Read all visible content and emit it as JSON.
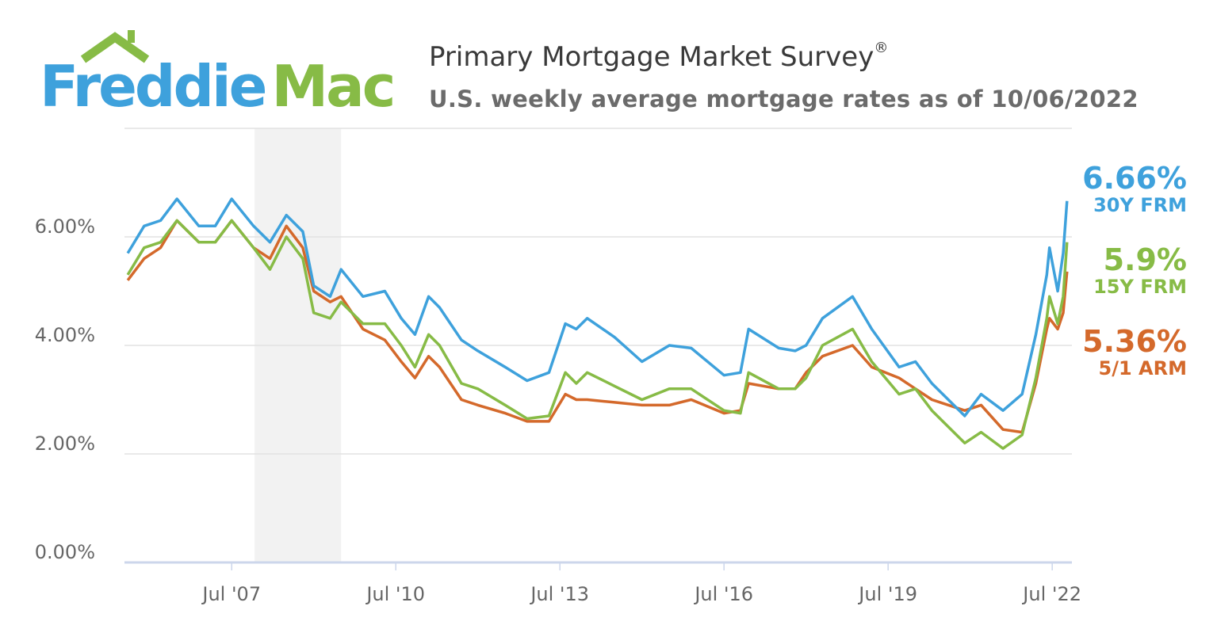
{
  "logo": {
    "text_part1": "Freddie",
    "text_part2": "Mac"
  },
  "header": {
    "title": "Primary Mortgage Market Survey",
    "title_mark": "®",
    "subtitle": "U.S. weekly average mortgage rates as of 10/06/2022"
  },
  "colors": {
    "frm30": "#3ea1dc",
    "frm15": "#87bb46",
    "arm51": "#d4692b",
    "recession": "#f2f2f2",
    "grid": "#e2e2e2",
    "axis": "#ccd6eb"
  },
  "latest": [
    {
      "value": "6.66%",
      "name": "30Y FRM"
    },
    {
      "value": "5.9%",
      "name": "15Y FRM"
    },
    {
      "value": "5.36%",
      "name": "5/1 ARM"
    }
  ],
  "chart_data": {
    "type": "line",
    "title": "Primary Mortgage Market Survey",
    "subtitle": "U.S. weekly average mortgage rates as of 10/06/2022",
    "xlabel": "",
    "ylabel": "",
    "xlim": [
      2005.54,
      2022.86
    ],
    "ylim": [
      0,
      8
    ],
    "grid": true,
    "y_ticks": [
      0,
      2,
      4,
      6,
      8
    ],
    "y_tick_labels": [
      "0.00%",
      "2.00%",
      "4.00%",
      "6.00%",
      ""
    ],
    "x_ticks": [
      2007.5,
      2010.5,
      2013.5,
      2016.5,
      2019.5,
      2022.5
    ],
    "x_tick_labels": [
      "Jul '07",
      "Jul '10",
      "Jul '13",
      "Jul '16",
      "Jul '19",
      "Jul '22"
    ],
    "recession_band": [
      2007.92,
      2009.5
    ],
    "legend": "right",
    "x": [
      2005.6,
      2005.9,
      2006.2,
      2006.5,
      2006.9,
      2007.2,
      2007.5,
      2007.9,
      2008.2,
      2008.5,
      2008.8,
      2009.0,
      2009.3,
      2009.5,
      2009.9,
      2010.3,
      2010.6,
      2010.85,
      2011.1,
      2011.3,
      2011.7,
      2012.0,
      2012.5,
      2012.9,
      2013.3,
      2013.6,
      2013.8,
      2014.0,
      2014.5,
      2015.0,
      2015.5,
      2015.9,
      2016.5,
      2016.8,
      2016.95,
      2017.5,
      2017.8,
      2018.0,
      2018.3,
      2018.85,
      2019.2,
      2019.7,
      2020.0,
      2020.3,
      2020.9,
      2021.2,
      2021.6,
      2021.95,
      2022.2,
      2022.4,
      2022.45,
      2022.6,
      2022.7,
      2022.77
    ],
    "series": [
      {
        "name": "30Y FRM",
        "values": [
          5.7,
          6.2,
          6.3,
          6.7,
          6.2,
          6.2,
          6.7,
          6.2,
          5.9,
          6.4,
          6.1,
          5.1,
          4.9,
          5.4,
          4.9,
          5.0,
          4.5,
          4.2,
          4.9,
          4.7,
          4.1,
          3.9,
          3.6,
          3.35,
          3.5,
          4.4,
          4.3,
          4.5,
          4.15,
          3.7,
          4.0,
          3.95,
          3.45,
          3.5,
          4.3,
          3.95,
          3.9,
          4.0,
          4.5,
          4.9,
          4.3,
          3.6,
          3.7,
          3.3,
          2.7,
          3.1,
          2.8,
          3.1,
          4.2,
          5.3,
          5.8,
          5.0,
          5.7,
          6.66
        ]
      },
      {
        "name": "15Y FRM",
        "values": [
          5.3,
          5.8,
          5.9,
          6.3,
          5.9,
          5.9,
          6.3,
          5.8,
          5.4,
          6.0,
          5.6,
          4.6,
          4.5,
          4.8,
          4.4,
          4.4,
          4.0,
          3.6,
          4.2,
          4.0,
          3.3,
          3.2,
          2.9,
          2.65,
          2.7,
          3.5,
          3.3,
          3.5,
          3.25,
          3.0,
          3.2,
          3.2,
          2.8,
          2.75,
          3.5,
          3.2,
          3.2,
          3.4,
          4.0,
          4.3,
          3.7,
          3.1,
          3.2,
          2.8,
          2.2,
          2.4,
          2.1,
          2.35,
          3.4,
          4.5,
          4.9,
          4.4,
          4.9,
          5.9
        ]
      },
      {
        "name": "5/1 ARM",
        "values": [
          5.2,
          5.6,
          5.8,
          6.3,
          5.9,
          5.9,
          6.3,
          5.8,
          5.6,
          6.2,
          5.8,
          5.0,
          4.8,
          4.9,
          4.3,
          4.1,
          3.7,
          3.4,
          3.8,
          3.6,
          3.0,
          2.9,
          2.75,
          2.6,
          2.6,
          3.1,
          3.0,
          3.0,
          2.95,
          2.9,
          2.9,
          3.0,
          2.75,
          2.8,
          3.3,
          3.2,
          3.2,
          3.5,
          3.8,
          4.0,
          3.6,
          3.4,
          3.2,
          3.0,
          2.8,
          2.9,
          2.45,
          2.4,
          3.3,
          4.3,
          4.5,
          4.3,
          4.6,
          5.36
        ]
      }
    ]
  }
}
